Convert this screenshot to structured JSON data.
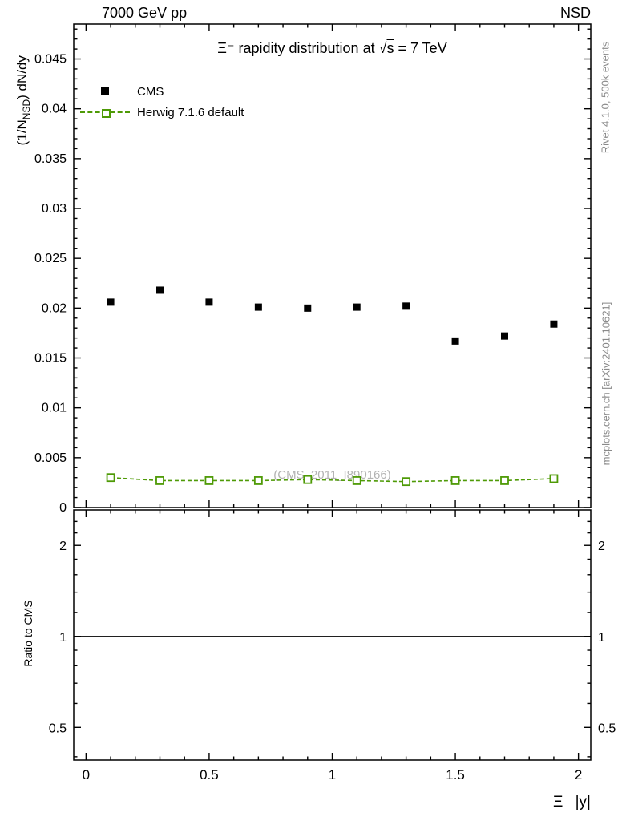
{
  "header": {
    "left": "7000 GeV pp",
    "right": "NSD"
  },
  "right_margin": {
    "top": "Rivet 4.1.0,  500k events",
    "bottom": "mcplots.cern.ch [arXiv:2401.10621]"
  },
  "main_panel": {
    "title_pre": "Ξ⁻ rapidity distribution at ",
    "sqrt_sym": "√",
    "sqrt_arg": "s",
    "title_post": " = 7 TeV",
    "ylabel_pre": "(1/N",
    "ylabel_sub": "NSD",
    "ylabel_post": ") dN/dy",
    "watermark": "(CMS_2011_I890166)"
  },
  "ratio_panel_label": "Ratio to CMS",
  "xaxis_label": "Ξ⁻ |y|",
  "legend": [
    {
      "label": "CMS",
      "marker": "filled-square",
      "color": "#000000"
    },
    {
      "label": "Herwig 7.1.6 default",
      "marker": "open-square-dashed-line",
      "color": "#4e9a06"
    }
  ],
  "chart_data": {
    "type": "scatter",
    "title": "Ξ⁻ rapidity distribution at √s = 7 TeV",
    "xlabel": "Ξ⁻ |y|",
    "ylabel": "(1/N_NSD) dN/dy",
    "grid": false,
    "legend_position": "top-left",
    "xlim": [
      -0.05,
      2.05
    ],
    "ylim": [
      0,
      0.0485
    ],
    "x": [
      0.1,
      0.3,
      0.5,
      0.7,
      0.9,
      1.1,
      1.3,
      1.5,
      1.7,
      1.9
    ],
    "series": [
      {
        "name": "CMS",
        "style": "filled-square",
        "color": "#000000",
        "values": [
          0.0206,
          0.0218,
          0.0206,
          0.0201,
          0.02,
          0.0201,
          0.0202,
          0.0167,
          0.0172,
          0.0184
        ]
      },
      {
        "name": "Herwig 7.1.6 default",
        "style": "open-square-dashed-line",
        "color": "#4e9a06",
        "values": [
          0.003,
          0.0027,
          0.0027,
          0.0027,
          0.0028,
          0.0027,
          0.0026,
          0.0027,
          0.0027,
          0.0029
        ]
      }
    ],
    "axes": {
      "x": {
        "major": [
          0,
          0.5,
          1,
          1.5,
          2
        ],
        "labels": [
          "0",
          "0.5",
          "1",
          "1.5",
          "2"
        ],
        "minor_step": 0.1
      },
      "y_main": {
        "major_step": 0.005,
        "minor_step": 0.001,
        "label_values": [
          0,
          0.005,
          0.01,
          0.015,
          0.02,
          0.025,
          0.03,
          0.035,
          0.04,
          0.045
        ],
        "label_texts": [
          "0",
          "0.005",
          "0.01",
          "0.015",
          "0.02",
          "0.025",
          "0.03",
          "0.035",
          "0.04",
          "0.045"
        ]
      }
    },
    "ratio_panel": {
      "ylabel": "Ratio to CMS",
      "scale": "log",
      "ylim": [
        0.39,
        2.62
      ],
      "reference_line": 1.0,
      "tick_values": [
        0.5,
        1,
        2
      ],
      "tick_labels": [
        "0.5",
        "1",
        "2"
      ],
      "minor_ticks": [
        0.4,
        0.6,
        0.7,
        0.8,
        0.9,
        1.2,
        1.4,
        1.6,
        1.8,
        2.2,
        2.4
      ]
    }
  }
}
